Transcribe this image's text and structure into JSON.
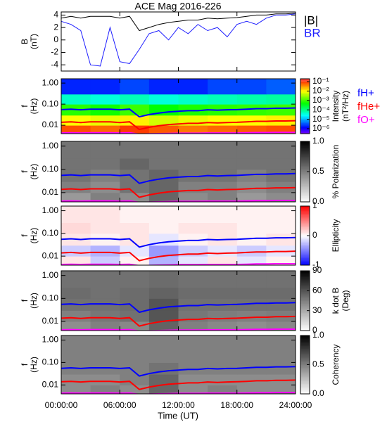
{
  "chart_data": {
    "title": "ACE Mag 2016-226",
    "xlabel": "Time (UT)",
    "xlim": [
      0,
      24
    ],
    "xticks": [
      {
        "value": 0,
        "label": "00:00:00"
      },
      {
        "value": 6,
        "label": "06:00:00"
      },
      {
        "value": 12,
        "label": "12:00:00"
      },
      {
        "value": 18,
        "label": "18:00:00"
      },
      {
        "value": 24,
        "label": "24:00:00"
      }
    ],
    "x": [
      0,
      1,
      2,
      3,
      4,
      5,
      6,
      7,
      8,
      9,
      10,
      11,
      12,
      13,
      14,
      15,
      16,
      17,
      18,
      19,
      20,
      21,
      22,
      23,
      24
    ],
    "spec_time_bins": [
      0,
      3,
      6,
      9,
      12,
      15,
      18,
      21,
      24
    ],
    "spec_freq_bins": [
      0.004,
      0.01,
      0.03,
      0.1,
      0.3,
      1.6
    ],
    "gyrofrequencies": [
      {
        "name": "fH+",
        "color": "#0000ff",
        "values": [
          0.055,
          0.058,
          0.054,
          0.058,
          0.058,
          0.058,
          0.054,
          0.058,
          0.025,
          0.032,
          0.038,
          0.043,
          0.046,
          0.049,
          0.049,
          0.054,
          0.052,
          0.054,
          0.055,
          0.058,
          0.061,
          0.061,
          0.064,
          0.064,
          0.066
        ]
      },
      {
        "name": "fHe+",
        "color": "#ff0000",
        "values": [
          0.0138,
          0.0145,
          0.0135,
          0.0145,
          0.0145,
          0.0145,
          0.0135,
          0.0145,
          0.0063,
          0.008,
          0.0095,
          0.0108,
          0.0115,
          0.0123,
          0.0123,
          0.0135,
          0.013,
          0.0135,
          0.0138,
          0.0145,
          0.0153,
          0.0153,
          0.016,
          0.016,
          0.0165
        ]
      },
      {
        "name": "fO+",
        "color": "#ff00ff",
        "values": [
          0.0043,
          0.0044,
          0.0043,
          0.0044,
          0.0044,
          0.0044,
          0.0043,
          0.0044,
          0.0038,
          0.0039,
          0.004,
          0.0041,
          0.0042,
          0.0042,
          0.0042,
          0.0043,
          0.0043,
          0.0043,
          0.0043,
          0.0044,
          0.0045,
          0.0045,
          0.0046,
          0.0046,
          0.0046
        ]
      }
    ],
    "panels": [
      {
        "type": "line",
        "ylabel": [
          "B",
          "(nT)"
        ],
        "ylim": [
          -5,
          4.5
        ],
        "yticks": [
          4,
          2,
          0,
          -2,
          -4
        ],
        "series": [
          {
            "name": "|B|",
            "color": "#000000",
            "values": [
              3.5,
              3.8,
              3.5,
              3.8,
              3.8,
              3.8,
              3.5,
              3.8,
              1.5,
              2.0,
              2.5,
              2.8,
              3.0,
              3.2,
              3.2,
              3.5,
              3.4,
              3.5,
              3.6,
              3.8,
              4.0,
              4.0,
              4.2,
              4.2,
              4.3
            ]
          },
          {
            "name": "BR",
            "color": "#1f1fff",
            "values": [
              3.0,
              2.5,
              1.5,
              -4.0,
              -4.2,
              2.0,
              -3.5,
              -3.8,
              -1.5,
              1.0,
              1.5,
              0,
              2.0,
              1.0,
              2.5,
              1.5,
              2.0,
              0.5,
              2.5,
              3.0,
              2.5,
              3.5,
              4.0,
              4.0,
              4.2
            ]
          }
        ]
      },
      {
        "type": "heatmap",
        "ylabel": [
          "f",
          "(Hz)"
        ],
        "log_y": true,
        "ylim": [
          0.004,
          1.6
        ],
        "yticks": [
          {
            "value": 1,
            "label": "1.00"
          },
          {
            "value": 0.1,
            "label": "0.10"
          },
          {
            "value": 0.01,
            "label": "0.01"
          }
        ],
        "colorscale": "rainbow",
        "log_color": true,
        "clim": [
          3e-07,
          0.2
        ],
        "cticks": [
          {
            "value": 0.1,
            "label": "10⁻¹"
          },
          {
            "value": 0.01,
            "label": "10⁻²"
          },
          {
            "value": 0.001,
            "label": "10⁻³"
          },
          {
            "value": 0.0001,
            "label": "10⁻⁴"
          },
          {
            "value": 1e-05,
            "label": "10⁻⁵"
          },
          {
            "value": 1e-06,
            "label": "10⁻⁶"
          }
        ],
        "clabel": [
          "Intensity",
          "(nT²/Hz)"
        ],
        "z": [
          [
            0.08,
            0.06,
            0.1,
            0.07,
            0.05,
            0.06,
            0.07,
            0.08
          ],
          [
            0.01,
            0.008,
            0.012,
            0.006,
            0.008,
            0.01,
            0.01,
            0.012
          ],
          [
            0.0008,
            0.0006,
            0.001,
            0.0005,
            0.0007,
            0.0008,
            0.0009,
            0.001
          ],
          [
            5e-05,
            4e-05,
            6e-05,
            4e-05,
            5e-05,
            6e-05,
            7e-05,
            8e-05
          ],
          [
            2e-06,
            2e-06,
            3e-06,
            2e-06,
            2e-06,
            3e-06,
            3e-06,
            4e-06
          ]
        ]
      },
      {
        "type": "heatmap",
        "ylabel": [
          "f",
          "(Hz)"
        ],
        "log_y": true,
        "ylim": [
          0.004,
          1.6
        ],
        "yticks": [
          {
            "value": 1,
            "label": "1.00"
          },
          {
            "value": 0.1,
            "label": "0.10"
          },
          {
            "value": 0.01,
            "label": "0.01"
          }
        ],
        "colorscale": "gray",
        "clim": [
          0,
          1
        ],
        "cticks": [
          {
            "value": 1,
            "label": "1.0"
          },
          {
            "value": 0.5,
            "label": "0.5"
          },
          {
            "value": 0,
            "label": "0.0"
          }
        ],
        "clabel": [
          "% Polarization"
        ],
        "z": [
          [
            0.4,
            0.5,
            0.45,
            0.6,
            0.45,
            0.5,
            0.4,
            0.45
          ],
          [
            0.5,
            0.45,
            0.55,
            0.6,
            0.5,
            0.5,
            0.45,
            0.5
          ],
          [
            0.55,
            0.5,
            0.55,
            0.6,
            0.55,
            0.55,
            0.5,
            0.55
          ],
          [
            0.55,
            0.55,
            0.6,
            0.55,
            0.55,
            0.55,
            0.55,
            0.55
          ],
          [
            0.55,
            0.55,
            0.55,
            0.55,
            0.55,
            0.55,
            0.55,
            0.55
          ]
        ]
      },
      {
        "type": "heatmap",
        "ylabel": [
          "f",
          "(Hz)"
        ],
        "log_y": true,
        "ylim": [
          0.004,
          1.6
        ],
        "yticks": [
          {
            "value": 1,
            "label": "1.00"
          },
          {
            "value": 0.1,
            "label": "0.10"
          },
          {
            "value": 0.01,
            "label": "0.01"
          }
        ],
        "colorscale": "bwr",
        "clim": [
          -1,
          1
        ],
        "cticks": [
          1,
          0,
          -1
        ],
        "clabel": [
          "Ellipticity"
        ],
        "z": [
          [
            0.1,
            -0.2,
            0.05,
            -0.3,
            -0.1,
            0.1,
            -0.1,
            0.05
          ],
          [
            -0.2,
            -0.3,
            -0.1,
            -0.4,
            -0.2,
            -0.1,
            -0.2,
            -0.1
          ],
          [
            0.1,
            0.05,
            0.1,
            -0.1,
            0.05,
            0.1,
            0.05,
            0.1
          ],
          [
            0.15,
            0.1,
            0.1,
            0.05,
            0.1,
            0.1,
            0.05,
            0.05
          ],
          [
            0.1,
            0.1,
            0.05,
            0.05,
            0.05,
            0.05,
            0.05,
            0.05
          ]
        ]
      },
      {
        "type": "heatmap",
        "ylabel": [
          "f",
          "(Hz)"
        ],
        "log_y": true,
        "ylim": [
          0.004,
          1.6
        ],
        "yticks": [
          {
            "value": 1,
            "label": "1.00"
          },
          {
            "value": 0.1,
            "label": "0.10"
          },
          {
            "value": 0.01,
            "label": "0.01"
          }
        ],
        "colorscale": "gray",
        "clim": [
          0,
          90
        ],
        "cticks": [
          90,
          60,
          30,
          0
        ],
        "clabel": [
          "k dot B",
          "(Deg)"
        ],
        "z": [
          [
            40,
            45,
            42,
            55,
            45,
            42,
            40,
            42
          ],
          [
            45,
            48,
            50,
            60,
            48,
            46,
            45,
            46
          ],
          [
            50,
            50,
            52,
            60,
            50,
            50,
            50,
            50
          ],
          [
            52,
            50,
            52,
            55,
            52,
            52,
            52,
            52
          ],
          [
            50,
            50,
            50,
            52,
            50,
            50,
            50,
            50
          ]
        ]
      },
      {
        "type": "heatmap",
        "ylabel": [
          "f",
          "(Hz)"
        ],
        "log_y": true,
        "ylim": [
          0.004,
          1.6
        ],
        "yticks": [
          {
            "value": 1,
            "label": "1.00"
          },
          {
            "value": 0.1,
            "label": "0.10"
          },
          {
            "value": 0.01,
            "label": "0.01"
          }
        ],
        "colorscale": "gray",
        "clim": [
          0,
          1
        ],
        "cticks": [
          {
            "value": 1,
            "label": "1.0"
          },
          {
            "value": 0.5,
            "label": "0.5"
          },
          {
            "value": 0,
            "label": "0.0"
          }
        ],
        "clabel": [
          "Coherency"
        ],
        "z": [
          [
            0.45,
            0.5,
            0.45,
            0.6,
            0.45,
            0.5,
            0.45,
            0.45
          ],
          [
            0.45,
            0.45,
            0.5,
            0.6,
            0.45,
            0.45,
            0.45,
            0.45
          ],
          [
            0.5,
            0.5,
            0.5,
            0.55,
            0.5,
            0.5,
            0.5,
            0.5
          ],
          [
            0.5,
            0.5,
            0.5,
            0.5,
            0.5,
            0.5,
            0.5,
            0.5
          ],
          [
            0.5,
            0.5,
            0.5,
            0.5,
            0.5,
            0.5,
            0.5,
            0.5
          ]
        ]
      }
    ]
  }
}
